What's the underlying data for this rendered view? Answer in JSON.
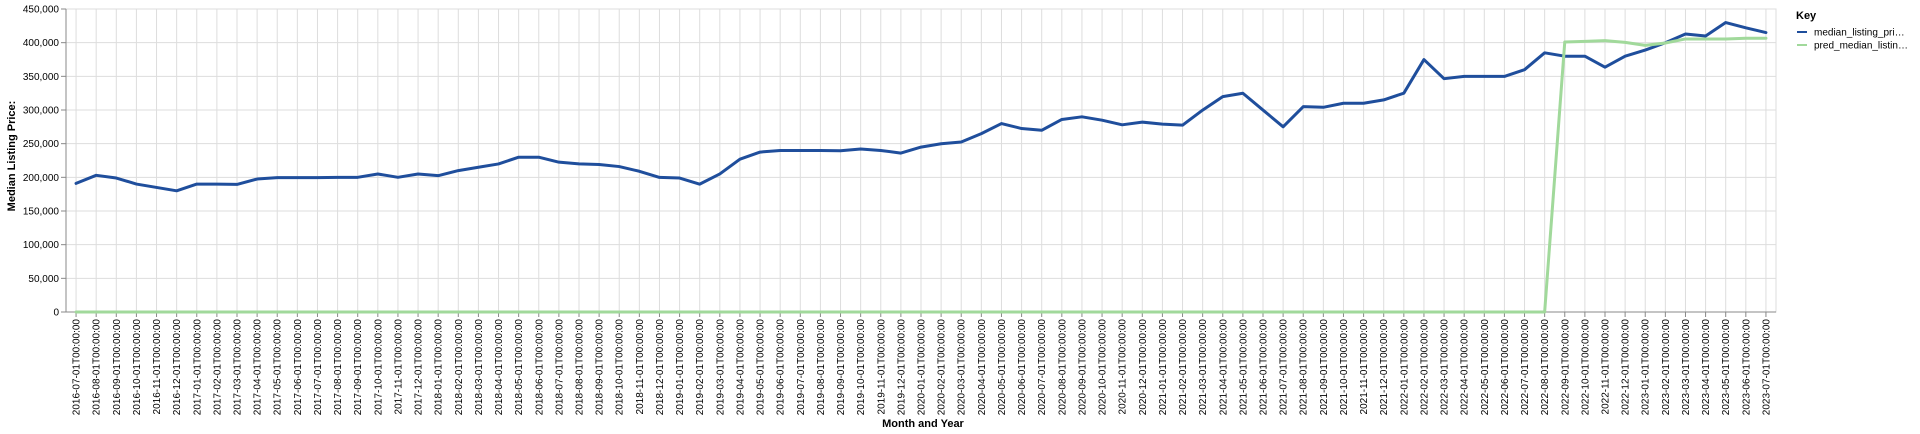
{
  "chart_data": {
    "type": "line",
    "xlabel": "Month and Year",
    "ylabel": "Median Listing Price:",
    "ylim": [
      0,
      450000
    ],
    "y_ticks": [
      0,
      50000,
      100000,
      150000,
      200000,
      250000,
      300000,
      350000,
      400000,
      450000
    ],
    "grid": true,
    "legend": {
      "title": "Key",
      "position": "top-right"
    },
    "x": [
      "2016-07-01T00:00:00",
      "2016-08-01T00:00:00",
      "2016-09-01T00:00:00",
      "2016-10-01T00:00:00",
      "2016-11-01T00:00:00",
      "2016-12-01T00:00:00",
      "2017-01-01T00:00:00",
      "2017-02-01T00:00:00",
      "2017-03-01T00:00:00",
      "2017-04-01T00:00:00",
      "2017-05-01T00:00:00",
      "2017-06-01T00:00:00",
      "2017-07-01T00:00:00",
      "2017-08-01T00:00:00",
      "2017-09-01T00:00:00",
      "2017-10-01T00:00:00",
      "2017-11-01T00:00:00",
      "2017-12-01T00:00:00",
      "2018-01-01T00:00:00",
      "2018-02-01T00:00:00",
      "2018-03-01T00:00:00",
      "2018-04-01T00:00:00",
      "2018-05-01T00:00:00",
      "2018-06-01T00:00:00",
      "2018-07-01T00:00:00",
      "2018-08-01T00:00:00",
      "2018-09-01T00:00:00",
      "2018-10-01T00:00:00",
      "2018-11-01T00:00:00",
      "2018-12-01T00:00:00",
      "2019-01-01T00:00:00",
      "2019-02-01T00:00:00",
      "2019-03-01T00:00:00",
      "2019-04-01T00:00:00",
      "2019-05-01T00:00:00",
      "2019-06-01T00:00:00",
      "2019-07-01T00:00:00",
      "2019-08-01T00:00:00",
      "2019-09-01T00:00:00",
      "2019-10-01T00:00:00",
      "2019-11-01T00:00:00",
      "2019-12-01T00:00:00",
      "2020-01-01T00:00:00",
      "2020-02-01T00:00:00",
      "2020-03-01T00:00:00",
      "2020-04-01T00:00:00",
      "2020-05-01T00:00:00",
      "2020-06-01T00:00:00",
      "2020-07-01T00:00:00",
      "2020-08-01T00:00:00",
      "2020-09-01T00:00:00",
      "2020-10-01T00:00:00",
      "2020-11-01T00:00:00",
      "2020-12-01T00:00:00",
      "2021-01-01T00:00:00",
      "2021-02-01T00:00:00",
      "2021-03-01T00:00:00",
      "2021-04-01T00:00:00",
      "2021-05-01T00:00:00",
      "2021-06-01T00:00:00",
      "2021-07-01T00:00:00",
      "2021-08-01T00:00:00",
      "2021-09-01T00:00:00",
      "2021-10-01T00:00:00",
      "2021-11-01T00:00:00",
      "2021-12-01T00:00:00",
      "2022-01-01T00:00:00",
      "2022-02-01T00:00:00",
      "2022-03-01T00:00:00",
      "2022-04-01T00:00:00",
      "2022-05-01T00:00:00",
      "2022-06-01T00:00:00",
      "2022-07-01T00:00:00",
      "2022-08-01T00:00:00",
      "2022-09-01T00:00:00",
      "2022-10-01T00:00:00",
      "2022-11-01T00:00:00",
      "2022-12-01T00:00:00",
      "2023-01-01T00:00:00",
      "2023-02-01T00:00:00",
      "2023-03-01T00:00:00",
      "2023-04-01T00:00:00",
      "2023-05-01T00:00:00",
      "2023-06-01T00:00:00",
      "2023-07-01T00:00:00"
    ],
    "series": [
      {
        "name": "median_listing_pri…",
        "color": "#1f4e9c",
        "values": [
          191000,
          203000,
          199000,
          190000,
          185000,
          180000,
          190000,
          190000,
          189500,
          197500,
          199500,
          199500,
          199500,
          200000,
          200000,
          205000,
          200000,
          205000,
          202500,
          210000,
          215000,
          219900,
          229900,
          229900,
          222500,
          220000,
          219000,
          216000,
          209000,
          199900,
          199000,
          189900,
          205000,
          227000,
          237500,
          239900,
          239900,
          239900,
          239500,
          242000,
          239900,
          236000,
          244900,
          249900,
          252500,
          264900,
          279900,
          272500,
          269900,
          285900,
          289900,
          284900,
          278000,
          282000,
          279000,
          277500,
          299900,
          319900,
          324900,
          299900,
          275000,
          305000,
          304000,
          310000,
          310000,
          315000,
          325000,
          374900,
          346500,
          349900,
          349900,
          349900,
          359900,
          384900,
          379900,
          379900,
          363500,
          379900,
          389000,
          399900,
          412900,
          409900,
          429900,
          422000,
          415000
        ]
      },
      {
        "name": "pred_median_listin…",
        "color": "#a1d99b",
        "values": [
          0,
          0,
          0,
          0,
          0,
          0,
          0,
          0,
          0,
          0,
          0,
          0,
          0,
          0,
          0,
          0,
          0,
          0,
          0,
          0,
          0,
          0,
          0,
          0,
          0,
          0,
          0,
          0,
          0,
          0,
          0,
          0,
          0,
          0,
          0,
          0,
          0,
          0,
          0,
          0,
          0,
          0,
          0,
          0,
          0,
          0,
          0,
          0,
          0,
          0,
          0,
          0,
          0,
          0,
          0,
          0,
          0,
          0,
          0,
          0,
          0,
          0,
          0,
          0,
          0,
          0,
          0,
          0,
          0,
          0,
          0,
          0,
          0,
          0,
          401000,
          402000,
          403000,
          400500,
          396000,
          399500,
          405500,
          405500,
          405500,
          406500,
          406500
        ]
      }
    ]
  }
}
